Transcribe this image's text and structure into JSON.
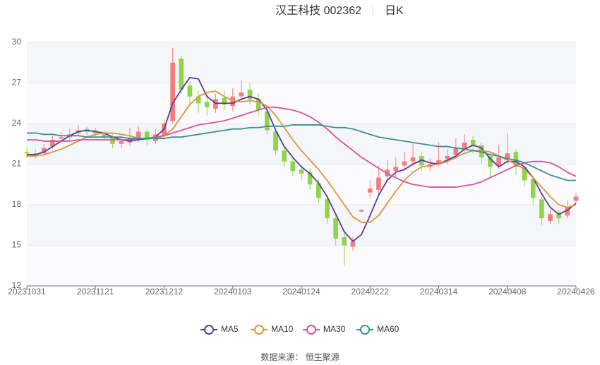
{
  "chart_data": {
    "type": "candlestick",
    "title": "汉王科技 002362",
    "subtitle": "日K",
    "categories": [
      "20231031",
      null,
      null,
      null,
      null,
      null,
      null,
      null,
      "20231121",
      null,
      null,
      null,
      null,
      null,
      null,
      null,
      "20231212",
      null,
      null,
      null,
      null,
      null,
      null,
      null,
      "20240103",
      null,
      null,
      null,
      null,
      null,
      null,
      null,
      "20240124",
      null,
      null,
      null,
      null,
      null,
      null,
      null,
      "20240222",
      null,
      null,
      null,
      null,
      null,
      null,
      null,
      "20240314",
      null,
      null,
      null,
      null,
      null,
      null,
      null,
      "20240408",
      null,
      null,
      null,
      null,
      null,
      null,
      null,
      "20240426"
    ],
    "open": [
      21.9,
      21.8,
      21.8,
      22.3,
      22.9,
      23.0,
      23.3,
      23.6,
      23.5,
      23.3,
      23.0,
      22.5,
      22.6,
      22.9,
      23.4,
      22.7,
      23.1,
      24.2,
      28.8,
      26.8,
      26.0,
      25.6,
      25.1,
      25.9,
      25.3,
      26.0,
      26.5,
      25.8,
      24.9,
      23.4,
      22.0,
      21.2,
      20.6,
      20.4,
      19.6,
      18.4,
      17.0,
      15.6,
      14.9,
      17.5,
      18.9,
      19.1,
      20.1,
      20.5,
      20.9,
      21.2,
      21.6,
      20.8,
      21.0,
      21.4,
      21.7,
      22.1,
      22.8,
      22.4,
      21.6,
      20.9,
      21.4,
      21.9,
      20.8,
      19.9,
      18.4,
      16.8,
      17.4,
      17.2,
      18.3
    ],
    "high": [
      22.2,
      22.1,
      22.5,
      23.1,
      23.4,
      23.6,
      23.9,
      23.8,
      23.7,
      23.5,
      23.2,
      23.0,
      23.7,
      23.8,
      23.6,
      23.6,
      24.3,
      29.6,
      29.0,
      27.1,
      26.4,
      26.0,
      26.2,
      26.4,
      26.6,
      27.2,
      27.0,
      26.2,
      25.2,
      23.6,
      22.3,
      21.5,
      20.9,
      20.7,
      19.9,
      18.6,
      17.2,
      15.9,
      15.6,
      17.7,
      19.8,
      20.9,
      21.3,
      21.5,
      21.9,
      22.5,
      21.9,
      21.4,
      22.6,
      22.1,
      22.9,
      23.2,
      23.1,
      22.6,
      21.9,
      22.4,
      23.3,
      22.1,
      21.0,
      20.1,
      18.6,
      17.6,
      17.6,
      18.3,
      18.9
    ],
    "low": [
      21.5,
      21.4,
      21.6,
      22.1,
      22.6,
      22.8,
      23.1,
      23.1,
      23.0,
      22.7,
      22.2,
      22.2,
      22.4,
      22.6,
      22.4,
      22.5,
      22.9,
      24.0,
      26.2,
      25.4,
      24.8,
      24.6,
      24.8,
      25.0,
      24.9,
      25.7,
      25.4,
      24.6,
      23.2,
      21.7,
      20.8,
      20.1,
      19.8,
      19.1,
      18.1,
      16.6,
      15.0,
      13.5,
      14.6,
      17.4,
      18.5,
      18.8,
      19.8,
      20.1,
      20.5,
      20.9,
      20.5,
      20.5,
      20.8,
      21.0,
      21.4,
      21.9,
      21.8,
      21.0,
      19.9,
      20.6,
      21.0,
      20.2,
      19.4,
      18.0,
      16.5,
      16.6,
      16.6,
      17.0,
      18.1
    ],
    "close": [
      21.8,
      21.7,
      22.2,
      22.8,
      23.0,
      23.2,
      23.5,
      23.4,
      23.3,
      23.0,
      22.5,
      22.7,
      22.9,
      23.4,
      22.8,
      23.2,
      24.0,
      28.5,
      26.5,
      26.0,
      25.5,
      25.2,
      25.8,
      25.4,
      26.0,
      26.3,
      25.8,
      25.0,
      23.5,
      22.0,
      21.2,
      20.5,
      20.3,
      19.5,
      18.5,
      17.0,
      15.5,
      15.0,
      15.3,
      17.6,
      19.2,
      20.0,
      20.6,
      20.8,
      21.2,
      21.5,
      20.9,
      21.0,
      21.3,
      21.6,
      22.2,
      22.6,
      22.4,
      21.5,
      20.8,
      21.5,
      21.8,
      20.8,
      19.8,
      18.5,
      17.0,
      17.3,
      17.0,
      17.8,
      18.6
    ],
    "up_color": "#f47c7c",
    "down_color": "#8fd44a",
    "series": [
      {
        "name": "MA5",
        "color": "#5b3a9e",
        "values": [
          21.7,
          21.7,
          21.9,
          22.3,
          22.7,
          23.1,
          23.4,
          23.5,
          23.4,
          23.3,
          23.0,
          22.8,
          22.7,
          22.8,
          22.9,
          23.0,
          23.6,
          25.5,
          26.5,
          27.4,
          27.3,
          26.0,
          25.5,
          25.5,
          25.5,
          25.8,
          26.0,
          25.8,
          25.0,
          23.5,
          22.3,
          21.5,
          20.8,
          20.3,
          19.6,
          18.6,
          17.3,
          16.0,
          15.3,
          15.8,
          17.2,
          18.7,
          19.8,
          20.4,
          20.6,
          21.0,
          21.3,
          21.1,
          21.0,
          21.3,
          21.6,
          22.1,
          22.4,
          22.2,
          21.4,
          20.8,
          21.2,
          21.2,
          20.8,
          20.0,
          18.8,
          17.8,
          17.3,
          17.6,
          18.1
        ]
      },
      {
        "name": "MA10",
        "color": "#e0943a",
        "values": [
          21.6,
          21.6,
          21.7,
          21.9,
          22.1,
          22.4,
          22.7,
          23.0,
          23.2,
          23.3,
          23.3,
          23.2,
          23.1,
          22.9,
          22.9,
          22.9,
          23.1,
          23.6,
          24.5,
          25.4,
          26.0,
          26.3,
          26.4,
          26.0,
          25.7,
          25.6,
          25.7,
          25.6,
          25.3,
          24.6,
          23.7,
          22.8,
          22.0,
          21.3,
          20.6,
          19.8,
          18.9,
          18.0,
          17.1,
          16.7,
          16.7,
          17.2,
          18.1,
          19.0,
          19.8,
          20.4,
          20.8,
          20.9,
          21.0,
          21.2,
          21.5,
          21.8,
          22.0,
          22.0,
          21.9,
          21.6,
          21.3,
          21.0,
          20.6,
          20.0,
          19.3,
          18.6,
          18.0,
          17.8,
          18.0
        ]
      },
      {
        "name": "MA30",
        "color": "#d6559c",
        "values": [
          22.8,
          22.8,
          22.7,
          22.7,
          22.7,
          22.7,
          22.8,
          22.8,
          22.8,
          22.8,
          22.8,
          22.8,
          22.8,
          22.9,
          22.9,
          23.0,
          23.1,
          23.3,
          23.5,
          23.7,
          23.9,
          24.0,
          24.1,
          24.2,
          24.4,
          24.6,
          24.8,
          25.0,
          25.2,
          25.2,
          25.1,
          25.0,
          24.8,
          24.5,
          24.1,
          23.6,
          23.0,
          22.5,
          22.0,
          21.5,
          21.1,
          20.7,
          20.3,
          20.0,
          19.7,
          19.5,
          19.4,
          19.3,
          19.3,
          19.3,
          19.3,
          19.4,
          19.5,
          19.7,
          20.0,
          20.3,
          20.6,
          20.9,
          21.1,
          21.2,
          21.2,
          21.1,
          20.8,
          20.4,
          20.1
        ]
      },
      {
        "name": "MA60",
        "color": "#3a9191",
        "values": [
          23.3,
          23.3,
          23.2,
          23.2,
          23.1,
          23.1,
          23.1,
          23.0,
          23.0,
          23.0,
          23.0,
          23.0,
          22.9,
          22.9,
          22.9,
          22.9,
          22.9,
          23.0,
          23.0,
          23.1,
          23.2,
          23.3,
          23.4,
          23.5,
          23.6,
          23.6,
          23.7,
          23.7,
          23.8,
          23.8,
          23.8,
          23.9,
          23.9,
          23.9,
          23.9,
          23.8,
          23.7,
          23.7,
          23.6,
          23.4,
          23.2,
          23.0,
          22.9,
          22.8,
          22.7,
          22.6,
          22.5,
          22.4,
          22.3,
          22.3,
          22.2,
          22.1,
          22.0,
          21.9,
          21.7,
          21.6,
          21.4,
          21.3,
          21.1,
          20.8,
          20.5,
          20.2,
          20.0,
          19.8,
          19.8
        ]
      }
    ],
    "ylim": [
      12,
      30
    ],
    "yticks": [
      12,
      15,
      18,
      21,
      24,
      27,
      30
    ],
    "grid": true,
    "legend": "bottom"
  },
  "footer": "数据来源： 恒生聚源"
}
